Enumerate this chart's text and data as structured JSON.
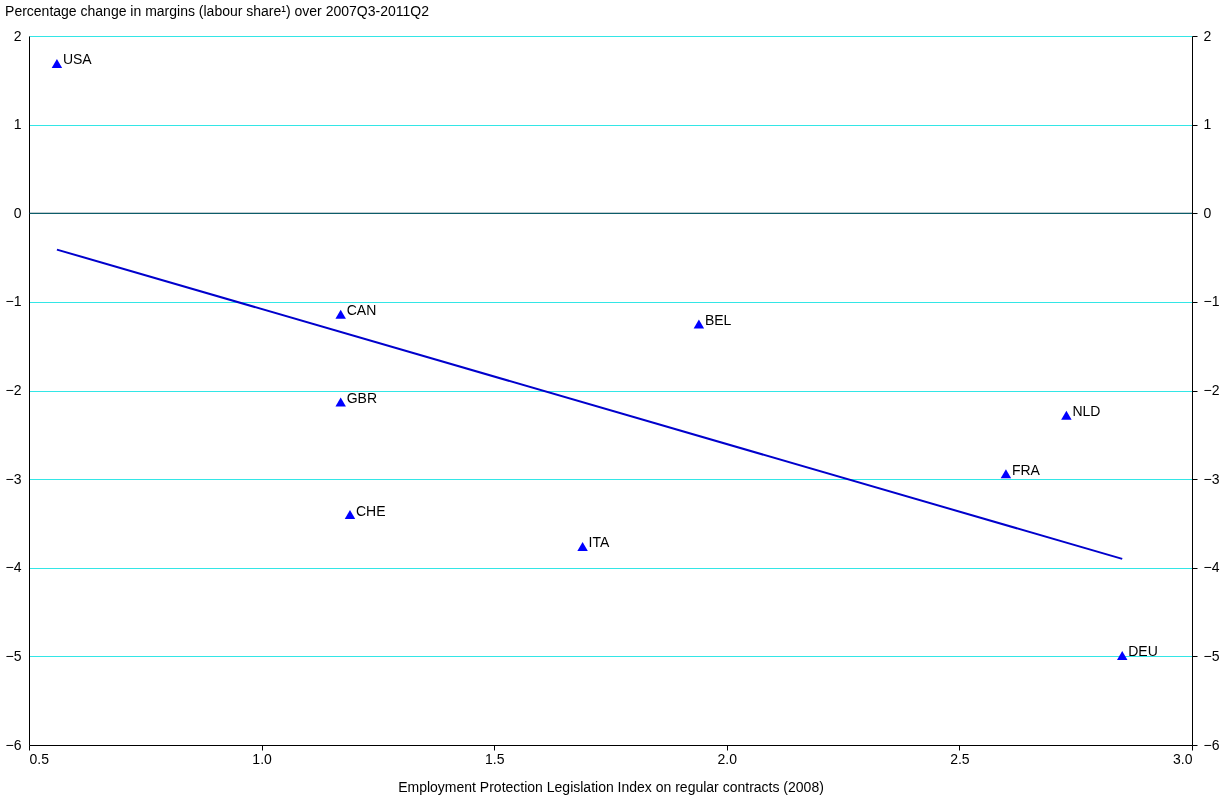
{
  "chart_data": {
    "type": "scatter",
    "ylabel": "Percentage change in margins (labour share¹) over 2007Q3-2011Q2",
    "xlabel": "Employment Protection Legislation Index on regular contracts (2008)",
    "xlim": [
      0.5,
      3.0
    ],
    "xticks": [
      {
        "value": 0.5,
        "label": "0.5"
      },
      {
        "value": 1,
        "label": "1.0"
      },
      {
        "value": 1.5,
        "label": "1.5"
      },
      {
        "value": 2,
        "label": "2.0"
      },
      {
        "value": 2.5,
        "label": "2.5"
      },
      {
        "value": 3,
        "label": "3.0"
      }
    ],
    "ylim": [
      -6,
      2
    ],
    "yticks": [
      -6,
      -5,
      -4,
      -3,
      -2,
      -1,
      0,
      1,
      2
    ],
    "y2lim": [
      -6,
      2
    ],
    "y2ticks": [
      -6,
      -5,
      -4,
      -3,
      -2,
      -1,
      0,
      1,
      2
    ],
    "grid": "y",
    "series": [
      {
        "marker": "triangle",
        "color": "#0000ff",
        "x": [
          0.56,
          1.17,
          1.17,
          1.19,
          1.69,
          1.94,
          2.73,
          2.6,
          2.85
        ],
        "values": [
          1.69,
          -1.14,
          -2.13,
          -3.4,
          -3.76,
          -1.25,
          -2.28,
          -2.94,
          -4.99
        ]
      },
      {
        "type": "line",
        "color": "#0000cc",
        "x": [
          0.56,
          2.85
        ],
        "values": [
          -0.41,
          -3.9
        ]
      }
    ],
    "ref_lines": [
      {
        "axis": "y",
        "value": 0,
        "color": "#003040"
      }
    ],
    "annotations": [
      {
        "text": "USA",
        "x": 0.56,
        "y": 1.69
      },
      {
        "text": "CAN",
        "x": 1.17,
        "y": -1.14
      },
      {
        "text": "GBR",
        "x": 1.17,
        "y": -2.13
      },
      {
        "text": "CHE",
        "x": 1.19,
        "y": -3.4
      },
      {
        "text": "ITA",
        "x": 1.69,
        "y": -3.76
      },
      {
        "text": "BEL",
        "x": 1.94,
        "y": -1.25
      },
      {
        "text": "NLD",
        "x": 2.73,
        "y": -2.28
      },
      {
        "text": "FRA",
        "x": 2.6,
        "y": -2.94
      },
      {
        "text": "DEU",
        "x": 2.85,
        "y": -4.99
      }
    ]
  }
}
